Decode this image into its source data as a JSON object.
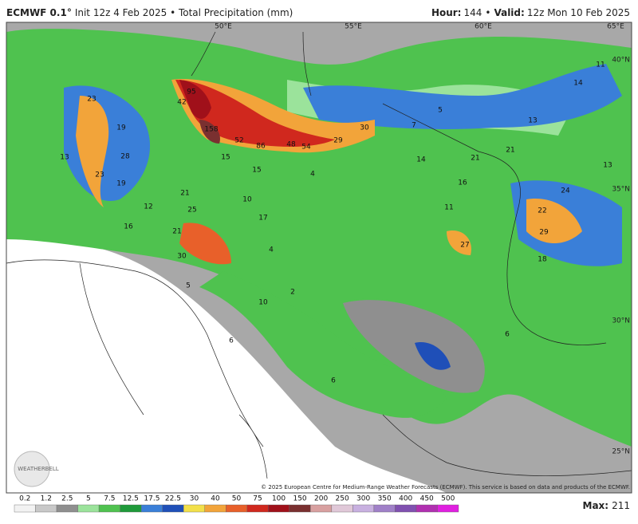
{
  "header": {
    "model": "ECMWF 0.1°",
    "init": "Init 12z 4 Feb 2025 • Total Precipitation (mm)",
    "hour_label": "Hour:",
    "hour": 144,
    "separator": "•",
    "valid_label": "Valid:",
    "valid": "12z Mon 10 Feb 2025"
  },
  "map": {
    "grid_labels": [
      "50°E",
      "55°E",
      "60°E",
      "65°E",
      "40°N",
      "35°N",
      "30°N",
      "25°N"
    ],
    "values": [
      95,
      42,
      158,
      52,
      86,
      48,
      54,
      29,
      30,
      5,
      7,
      13,
      14,
      11,
      14,
      21,
      21,
      13,
      24,
      16,
      22,
      29,
      18,
      11,
      27,
      15,
      15,
      4,
      10,
      17,
      21,
      25,
      21,
      30,
      12,
      19,
      28,
      23,
      16,
      19,
      13,
      23,
      5,
      10,
      6,
      6,
      6,
      2,
      4
    ],
    "logo": "WEATHERBELL",
    "credit": "© 2025 European Centre for Medium-Range Weather Forecasts (ECMWF). This service is based on data and products of the ECMWF."
  },
  "colorbar": {
    "labels": [
      0.2,
      1.2,
      2.5,
      5,
      7.5,
      12.5,
      17.5,
      22.5,
      30,
      40,
      50,
      75,
      100,
      150,
      200,
      250,
      300,
      350,
      400,
      450,
      500
    ],
    "colors": [
      "#f2f2f2",
      "#c8c8c8",
      "#8f8f8f",
      "#9be39b",
      "#4fc24f",
      "#1f9a3a",
      "#3a7fd8",
      "#1f4fb8",
      "#f2e04a",
      "#f2a43a",
      "#e8602a",
      "#d0281e",
      "#a0101a",
      "#7a3030",
      "#d8a0a0",
      "#e0c8d8",
      "#c8b0e0",
      "#a080c8",
      "#8050b0",
      "#b030b0",
      "#e020e0"
    ],
    "max_label": "Max:",
    "max": 211
  }
}
